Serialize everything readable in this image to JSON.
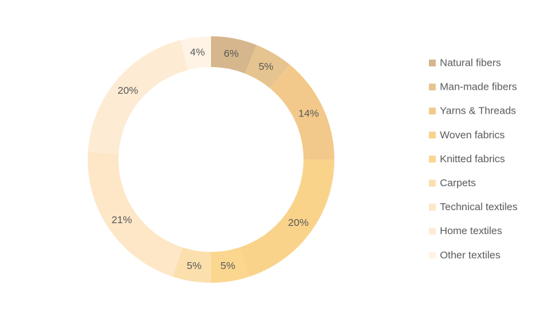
{
  "chart_data": {
    "type": "pie",
    "variant": "donut",
    "title": "",
    "legend_position": "right",
    "categories": [
      "Natural fibers",
      "Man-made fibers",
      "Yarns & Threads",
      "Woven fabrics",
      "Knitted fabrics",
      "Carpets",
      "Technical textiles",
      "Home textiles",
      "Other textiles"
    ],
    "values": [
      6,
      5,
      14,
      20,
      5,
      5,
      21,
      20,
      4
    ],
    "data_labels": [
      "6%",
      "5%",
      "14%",
      "20%",
      "5%",
      "5%",
      "21%",
      "20%",
      "4%"
    ],
    "colors": [
      "#d6b68c",
      "#e6c48f",
      "#f2c98a",
      "#fad38b",
      "#fbd68f",
      "#fbe0ad",
      "#fde7c7",
      "#fdebd3",
      "#fef3e5"
    ]
  }
}
